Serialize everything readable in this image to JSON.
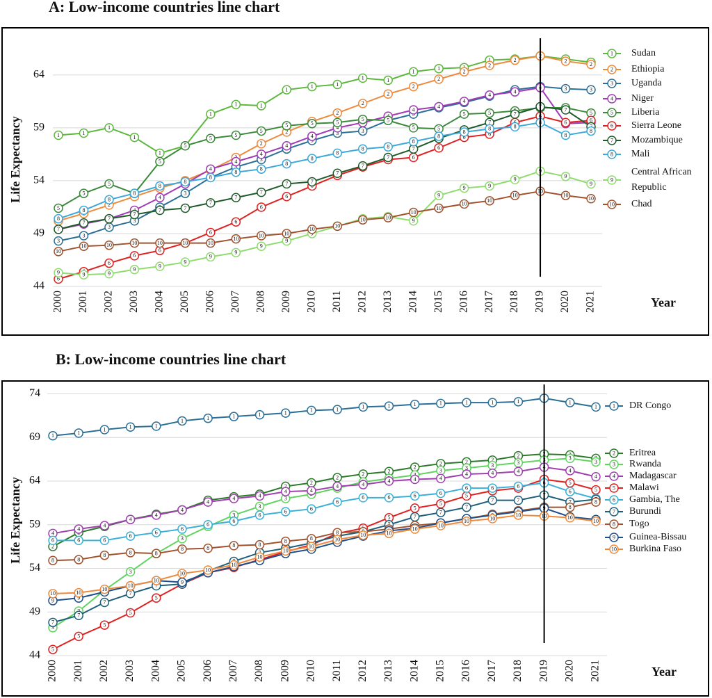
{
  "chart_data": [
    {
      "type": "line",
      "title": "A: Low-income countries line chart",
      "y_label": "Life Expectancy",
      "x_label": "Year",
      "x": [
        2000,
        2001,
        2002,
        2003,
        2004,
        2005,
        2006,
        2007,
        2008,
        2009,
        2010,
        2011,
        2012,
        2013,
        2014,
        2015,
        2016,
        2017,
        2018,
        2019,
        2020,
        2021
      ],
      "xlim": [
        2000,
        2021
      ],
      "xticks": [
        2000,
        2001,
        2002,
        2003,
        2004,
        2005,
        2006,
        2007,
        2008,
        2009,
        2010,
        2011,
        2012,
        2013,
        2014,
        2015,
        2016,
        2017,
        2018,
        2019,
        2020,
        2021
      ],
      "ylim": [
        44,
        68
      ],
      "yticks": [
        44,
        49,
        54,
        59,
        64
      ],
      "grid": true,
      "vline": 2019,
      "series": [
        {
          "name": "Sudan",
          "marker": "1",
          "color": "#5cb83c",
          "values": [
            58.3,
            58.5,
            59.0,
            58.1,
            56.6,
            57.3,
            60.3,
            61.2,
            61.1,
            62.6,
            62.9,
            63.1,
            63.7,
            63.5,
            64.3,
            64.6,
            64.7,
            65.4,
            65.5,
            65.8,
            65.5,
            65.2
          ]
        },
        {
          "name": "Ethiopia",
          "marker": "2",
          "color": "#ee8a3c",
          "values": [
            50.2,
            50.9,
            51.7,
            52.5,
            53.3,
            54.0,
            55.0,
            56.2,
            57.5,
            58.6,
            59.6,
            60.4,
            61.3,
            62.2,
            62.9,
            63.6,
            64.3,
            64.9,
            65.4,
            65.8,
            65.3,
            65.0
          ]
        },
        {
          "name": "Uganda",
          "marker": "3",
          "color": "#2a6f97",
          "values": [
            48.3,
            48.8,
            49.6,
            50.2,
            51.5,
            52.8,
            54.3,
            55.3,
            56.0,
            57.0,
            57.8,
            58.5,
            58.7,
            59.7,
            60.3,
            60.9,
            61.4,
            62.0,
            62.6,
            62.9,
            62.7,
            62.6
          ]
        },
        {
          "name": "Niger",
          "marker": "4",
          "color": "#a03ab5",
          "values": [
            49.4,
            49.9,
            50.4,
            51.2,
            52.4,
            53.7,
            55.1,
            55.8,
            56.5,
            57.3,
            58.2,
            59.0,
            59.5,
            60.1,
            60.7,
            61.0,
            61.5,
            62.1,
            62.4,
            62.8,
            59.4,
            59.5
          ]
        },
        {
          "name": "Liberia",
          "marker": "5",
          "color": "#3a8a3a",
          "values": [
            51.4,
            52.8,
            53.7,
            52.8,
            55.8,
            57.3,
            58.0,
            58.3,
            58.7,
            59.2,
            59.4,
            59.5,
            59.8,
            59.7,
            59.0,
            58.9,
            60.3,
            60.4,
            60.6,
            60.9,
            60.9,
            60.4
          ]
        },
        {
          "name": "Sierra Leone",
          "marker": "6",
          "color": "#e02020",
          "values": [
            44.7,
            45.4,
            46.2,
            46.9,
            47.4,
            48.1,
            49.1,
            50.1,
            51.5,
            52.5,
            53.5,
            54.5,
            55.3,
            56.0,
            56.2,
            57.1,
            58.1,
            58.4,
            59.5,
            60.1,
            59.5,
            59.7
          ]
        },
        {
          "name": "Mozambique",
          "marker": "7",
          "color": "#1f5a2a",
          "values": [
            49.4,
            50.0,
            50.4,
            50.8,
            51.2,
            51.4,
            51.9,
            52.4,
            52.9,
            53.7,
            53.9,
            54.7,
            55.4,
            56.2,
            57.0,
            58.0,
            58.8,
            59.5,
            60.3,
            61.0,
            60.7,
            59.1
          ]
        },
        {
          "name": "Mali",
          "marker": "8",
          "color": "#3aa8d8",
          "values": [
            50.4,
            51.2,
            52.2,
            52.8,
            53.5,
            53.9,
            54.3,
            54.8,
            55.1,
            55.6,
            56.1,
            56.6,
            57.0,
            57.2,
            57.7,
            58.2,
            58.6,
            58.9,
            59.1,
            59.5,
            58.3,
            58.7
          ]
        },
        {
          "name": "Central African Republic",
          "marker": "9",
          "color": "#8fdc6e",
          "values": [
            45.3,
            45.1,
            45.2,
            45.6,
            45.9,
            46.3,
            46.8,
            47.2,
            47.8,
            48.3,
            49.0,
            49.7,
            50.4,
            50.6,
            50.2,
            52.6,
            53.3,
            53.5,
            54.1,
            54.9,
            54.4,
            53.7
          ]
        },
        {
          "name": "Chad",
          "marker": "10",
          "color": "#a0522d",
          "values": [
            47.3,
            47.8,
            47.9,
            48.1,
            48.1,
            48.1,
            48.1,
            48.5,
            48.8,
            49.0,
            49.4,
            49.7,
            50.3,
            50.5,
            51.0,
            51.4,
            51.8,
            52.1,
            52.6,
            53.0,
            52.6,
            52.3
          ]
        }
      ]
    },
    {
      "type": "line",
      "title": "B: Low-income countries line chart",
      "y_label": "Life Expectancy",
      "x_label": "Year",
      "x": [
        2000,
        2001,
        2002,
        2003,
        2004,
        2005,
        2006,
        2007,
        2008,
        2009,
        2010,
        2011,
        2012,
        2013,
        2014,
        2015,
        2016,
        2017,
        2018,
        2019,
        2020,
        2021
      ],
      "xlim": [
        2000,
        2021
      ],
      "xticks": [
        2000,
        2001,
        2002,
        2003,
        2004,
        2005,
        2006,
        2007,
        2008,
        2009,
        2010,
        2011,
        2012,
        2013,
        2014,
        2015,
        2016,
        2017,
        2018,
        2019,
        2020,
        2021
      ],
      "ylim": [
        44,
        75
      ],
      "yticks": [
        44,
        49,
        54,
        59,
        64,
        69,
        74
      ],
      "grid": true,
      "vline": 2019,
      "series": [
        {
          "name": "DR Congo",
          "marker": "1",
          "color": "#2a6f97",
          "values": [
            69.2,
            69.5,
            69.9,
            70.2,
            70.3,
            70.9,
            71.2,
            71.4,
            71.6,
            71.8,
            72.1,
            72.2,
            72.5,
            72.6,
            72.8,
            72.9,
            73.0,
            73.0,
            73.1,
            73.5,
            73.0,
            72.5
          ]
        },
        {
          "name": "Eritrea",
          "marker": "2",
          "color": "#2a7a2a",
          "values": [
            56.5,
            58.1,
            58.8,
            59.6,
            60.2,
            60.7,
            61.8,
            62.2,
            62.5,
            63.4,
            63.8,
            64.4,
            64.8,
            65.1,
            65.6,
            66.0,
            66.2,
            66.4,
            66.9,
            67.1,
            67.0,
            66.6
          ]
        },
        {
          "name": "Rwanda",
          "marker": "3",
          "color": "#5fd45f",
          "values": [
            47.2,
            49.1,
            51.5,
            53.6,
            55.7,
            57.4,
            58.8,
            60.1,
            61.1,
            62.0,
            62.5,
            63.2,
            63.9,
            64.3,
            64.7,
            65.2,
            65.5,
            65.8,
            66.1,
            66.4,
            66.6,
            66.2
          ]
        },
        {
          "name": "Madagascar",
          "marker": "4",
          "color": "#a040b0",
          "values": [
            58.0,
            58.5,
            58.9,
            59.6,
            60.1,
            60.7,
            61.6,
            62.0,
            62.3,
            62.8,
            62.9,
            63.4,
            63.6,
            64.0,
            64.2,
            64.3,
            64.8,
            64.9,
            65.1,
            65.6,
            65.2,
            64.5
          ]
        },
        {
          "name": "Malawi",
          "marker": "5",
          "color": "#e02020",
          "values": [
            44.7,
            46.2,
            47.5,
            48.9,
            50.6,
            52.2,
            53.5,
            54.1,
            55.0,
            55.9,
            56.7,
            58.0,
            58.6,
            59.8,
            60.9,
            61.4,
            62.3,
            62.9,
            63.2,
            64.2,
            63.8,
            63.0
          ]
        },
        {
          "name": "Gambia, The",
          "marker": "6",
          "color": "#3ab0d8",
          "values": [
            57.2,
            57.2,
            57.2,
            57.7,
            58.1,
            58.5,
            59.0,
            59.4,
            60.1,
            60.5,
            60.8,
            61.6,
            62.1,
            62.1,
            62.3,
            62.6,
            63.2,
            63.2,
            63.4,
            63.8,
            62.8,
            62.0
          ]
        },
        {
          "name": "Burundi",
          "marker": "7",
          "color": "#1f5f7a",
          "values": [
            47.8,
            48.6,
            50.1,
            51.1,
            52.0,
            52.2,
            53.7,
            54.8,
            55.8,
            56.3,
            56.9,
            57.7,
            58.2,
            59.0,
            59.9,
            60.4,
            61.0,
            61.8,
            61.8,
            62.4,
            61.6,
            61.9
          ]
        },
        {
          "name": "Togo",
          "marker": "8",
          "color": "#a0522d",
          "values": [
            54.9,
            55.0,
            55.5,
            55.8,
            55.7,
            56.2,
            56.3,
            56.6,
            56.7,
            57.1,
            57.4,
            58.1,
            58.2,
            58.5,
            58.9,
            59.2,
            59.7,
            60.2,
            60.6,
            61.0,
            61.0,
            61.6
          ]
        },
        {
          "name": "Guinea-Bissau",
          "marker": "9",
          "color": "#1e4f8a",
          "values": [
            50.3,
            50.6,
            51.3,
            52.0,
            52.6,
            52.4,
            53.5,
            54.2,
            54.9,
            55.7,
            56.2,
            57.0,
            57.7,
            58.3,
            58.6,
            59.2,
            59.7,
            60.1,
            60.5,
            60.9,
            59.9,
            59.6
          ]
        },
        {
          "name": "Burkina Faso",
          "marker": "10",
          "color": "#ee8a3c",
          "values": [
            51.1,
            51.2,
            51.6,
            52.0,
            52.6,
            53.4,
            53.8,
            54.4,
            55.3,
            56.0,
            56.5,
            57.3,
            57.8,
            58.0,
            58.5,
            58.9,
            59.4,
            59.7,
            60.1,
            60.0,
            59.8,
            59.4
          ]
        }
      ]
    }
  ]
}
